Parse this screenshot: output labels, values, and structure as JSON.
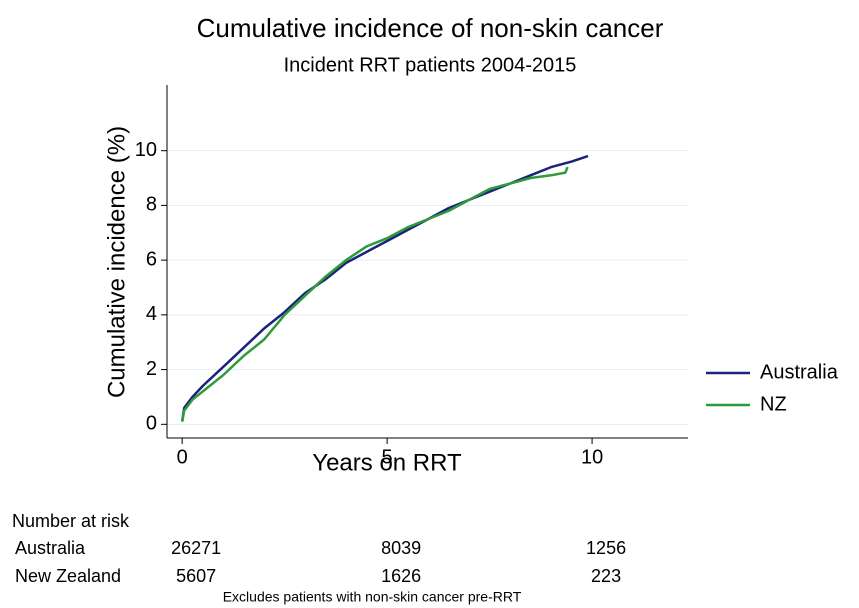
{
  "chart_data": {
    "type": "line",
    "title": "Cumulative incidence of non-skin cancer",
    "subtitle": "Incident RRT patients 2004-2015",
    "x_label": "Years on RRT",
    "y_label": "Cumulative incidence (%)",
    "xlim": [
      -0.37,
      12.34
    ],
    "ylim": [
      -0.5,
      12.4
    ],
    "xticks": [
      0,
      5,
      10
    ],
    "yticks": [
      0,
      2,
      4,
      6,
      8,
      10
    ],
    "grid": true,
    "legend": "right",
    "series": [
      {
        "name": "Australia",
        "color": "#1a237e",
        "x": [
          0,
          0.05,
          0.25,
          0.5,
          1,
          1.5,
          2,
          2.5,
          3,
          3.5,
          4,
          4.5,
          5,
          5.5,
          6,
          6.5,
          7,
          7.5,
          8,
          8.5,
          9,
          9.5,
          9.9
        ],
        "values": [
          0.1,
          0.6,
          1.0,
          1.4,
          2.1,
          2.8,
          3.5,
          4.1,
          4.8,
          5.3,
          5.9,
          6.3,
          6.7,
          7.1,
          7.5,
          7.9,
          8.2,
          8.5,
          8.8,
          9.1,
          9.4,
          9.6,
          9.8
        ]
      },
      {
        "name": "NZ",
        "color": "#2e9a3a",
        "x": [
          0,
          0.05,
          0.25,
          0.5,
          1,
          1.5,
          2,
          2.5,
          3,
          3.5,
          4,
          4.5,
          5,
          5.5,
          6,
          6.5,
          7,
          7.5,
          8,
          8.5,
          9,
          9.35,
          9.4
        ],
        "values": [
          0.1,
          0.5,
          0.9,
          1.2,
          1.8,
          2.5,
          3.1,
          4.0,
          4.7,
          5.4,
          6.0,
          6.5,
          6.8,
          7.2,
          7.5,
          7.8,
          8.2,
          8.6,
          8.8,
          9.0,
          9.1,
          9.2,
          9.4
        ]
      }
    ],
    "risk_table": {
      "title": "Number at risk",
      "rows": [
        {
          "label": "Australia",
          "values": [
            26271,
            8039,
            1256
          ]
        },
        {
          "label": "New Zealand",
          "values": [
            5607,
            1626,
            223
          ]
        }
      ]
    },
    "note": "Excludes patients with non-skin cancer pre-RRT"
  }
}
